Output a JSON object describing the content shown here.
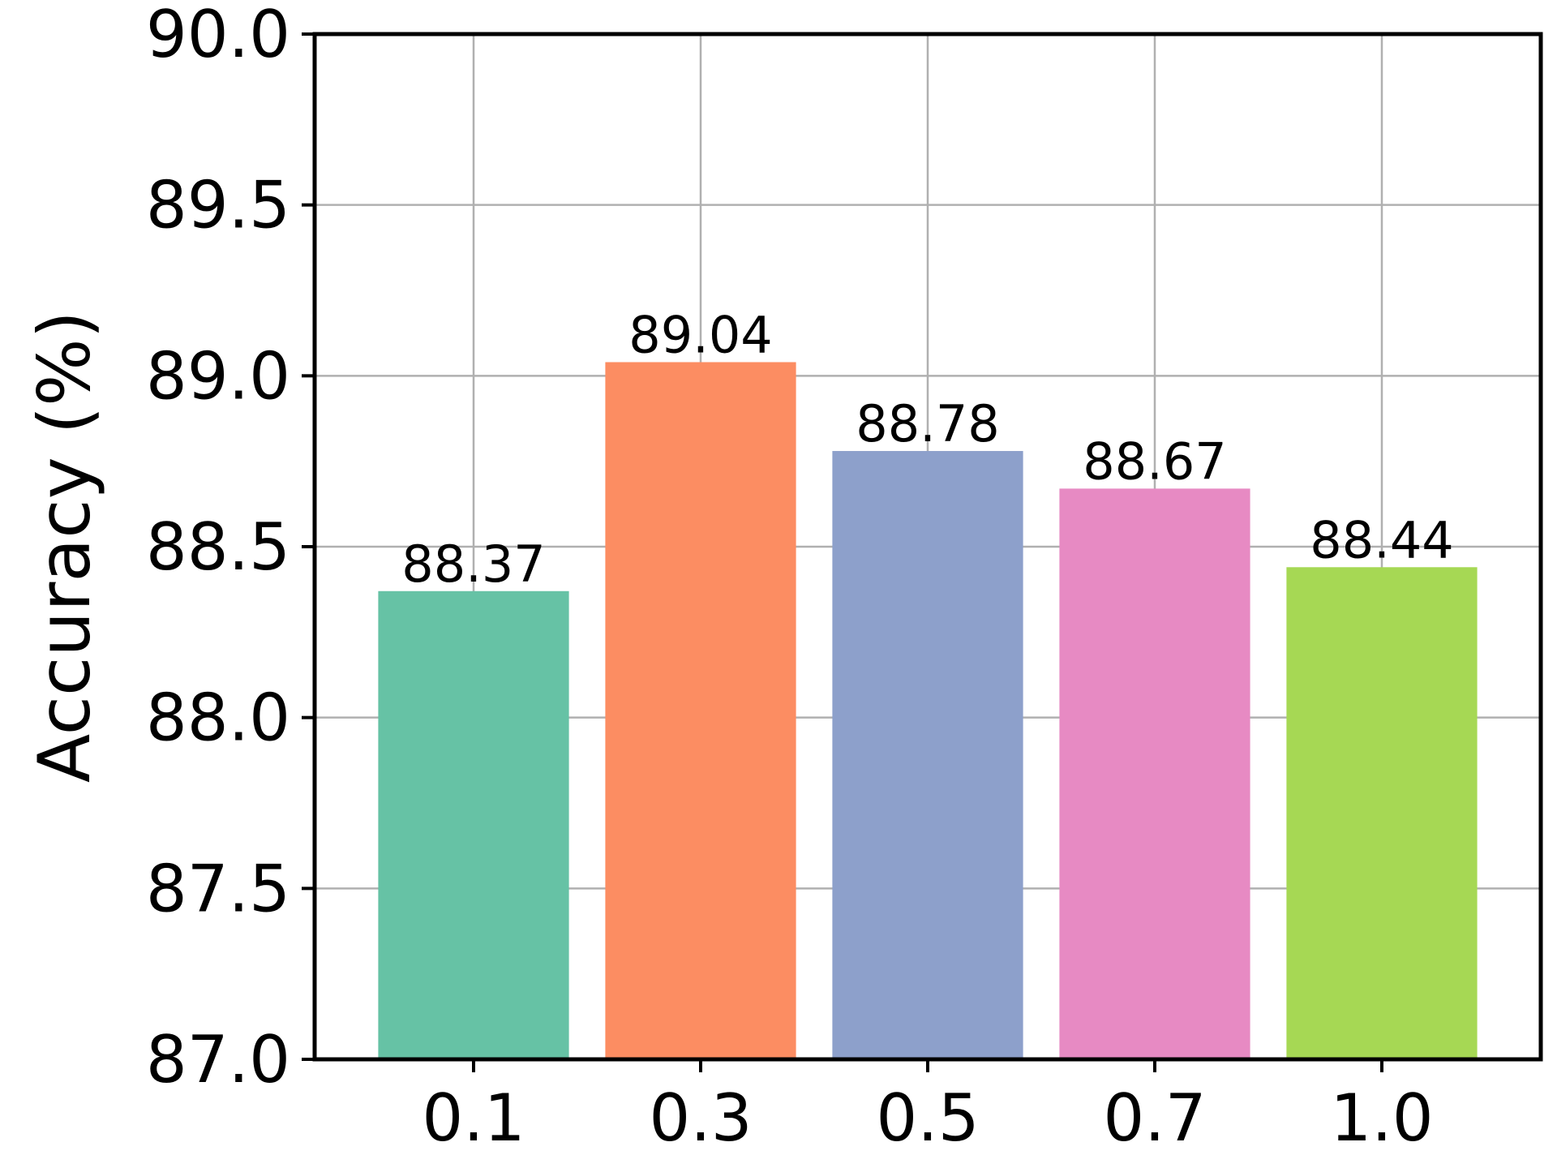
{
  "chart_data": {
    "type": "bar",
    "title": "",
    "xlabel": "",
    "ylabel": "Accuracy (%)",
    "categories": [
      "0.1",
      "0.3",
      "0.5",
      "0.7",
      "1.0"
    ],
    "values": [
      88.37,
      89.04,
      88.78,
      88.67,
      88.44
    ],
    "value_labels": [
      "88.37",
      "89.04",
      "88.78",
      "88.67",
      "88.44"
    ],
    "colors": [
      "#66c2a5",
      "#fc8d62",
      "#8da0cb",
      "#e78ac3",
      "#a6d854"
    ],
    "ylim": [
      87.0,
      90.0
    ],
    "yticks": [
      87.0,
      87.5,
      88.0,
      88.5,
      89.0,
      89.5,
      90.0
    ],
    "ytick_labels": [
      "87.0",
      "87.5",
      "88.0",
      "88.5",
      "89.0",
      "89.5",
      "90.0"
    ],
    "grid": true,
    "legend": "none"
  }
}
